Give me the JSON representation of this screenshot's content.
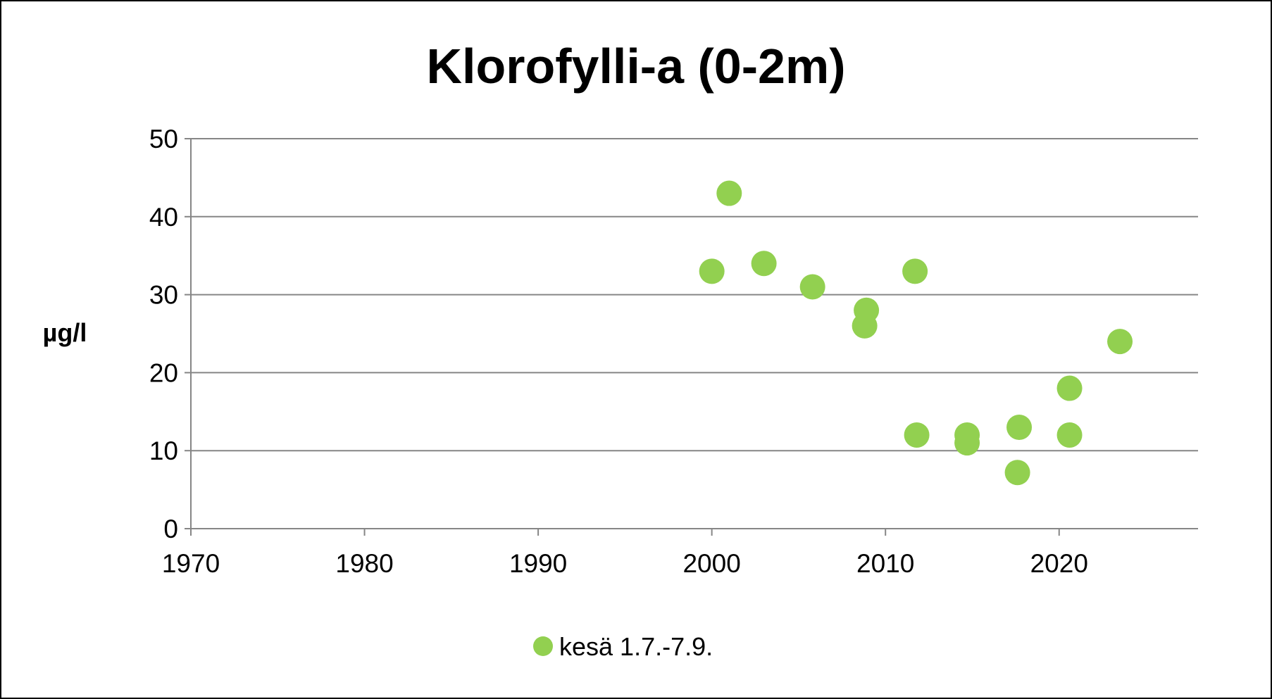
{
  "chart_data": {
    "type": "scatter",
    "title": "Klorofylli-a (0-2m)",
    "xlabel": "",
    "ylabel": "µg/l",
    "xlim": [
      1970,
      2028
    ],
    "ylim": [
      0,
      50
    ],
    "xticks": [
      1970,
      1980,
      1990,
      2000,
      2010,
      2020
    ],
    "yticks": [
      0,
      10,
      20,
      30,
      40,
      50
    ],
    "grid": "horizontal",
    "legend_position": "bottom",
    "series": [
      {
        "name": "kesä 1.7.-7.9.",
        "color": "#92d050",
        "x": [
          2000.0,
          2001.0,
          2003.0,
          2005.8,
          2008.9,
          2008.8,
          2011.7,
          2011.8,
          2014.7,
          2014.7,
          2017.7,
          2017.6,
          2020.6,
          2020.6,
          2023.5
        ],
        "y": [
          33,
          43,
          34,
          31,
          28,
          26,
          33,
          12,
          12,
          11,
          13,
          7.2,
          18,
          12,
          24
        ]
      }
    ]
  }
}
